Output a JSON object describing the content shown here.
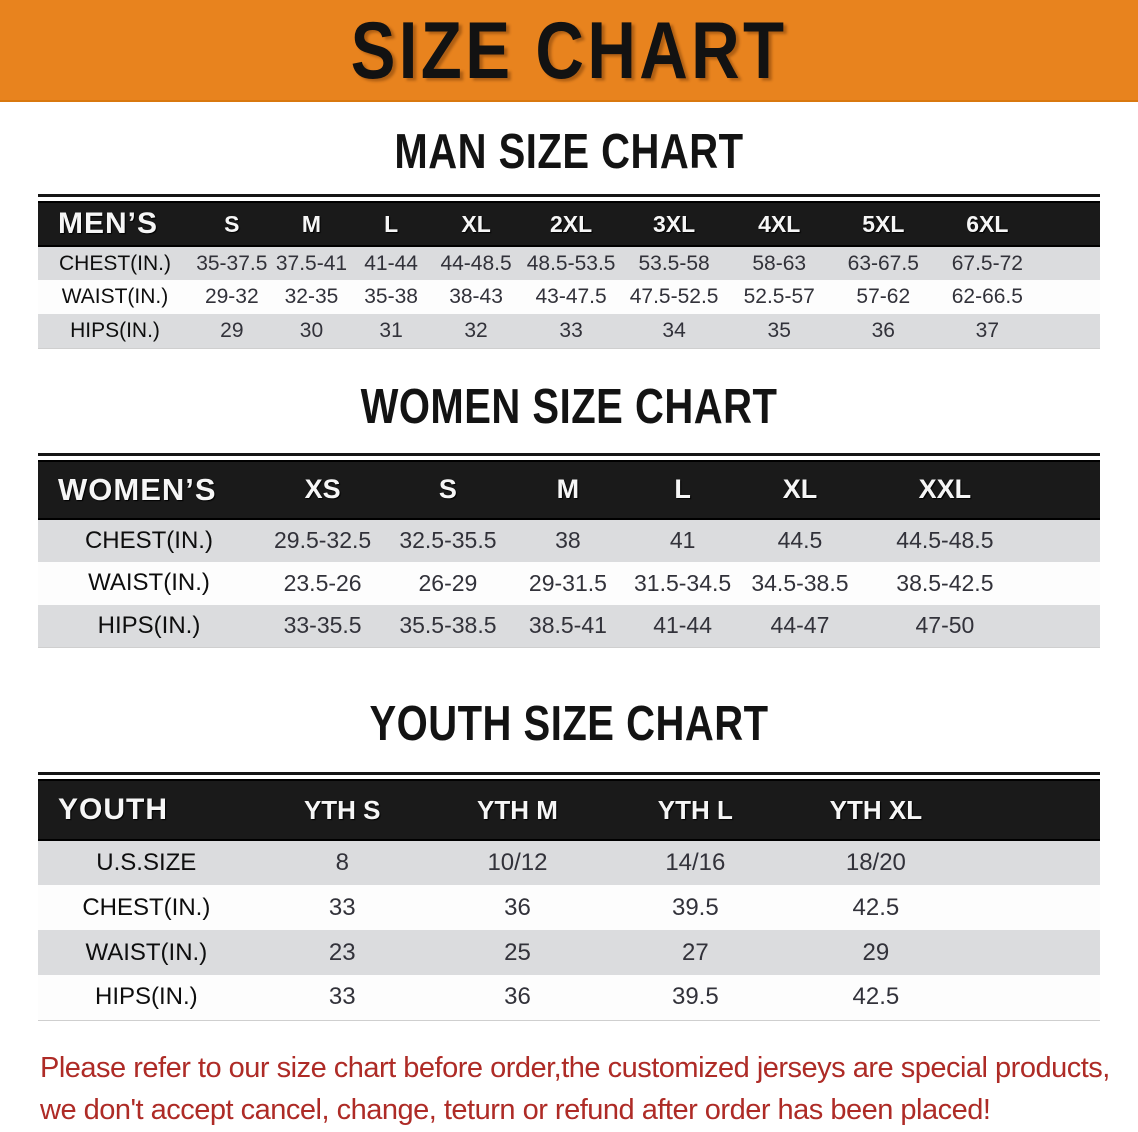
{
  "banner": {
    "title": "SIZE CHART",
    "bg": "#E8831E"
  },
  "colors": {
    "banner_bg": "#E8831E",
    "table_header_bg": "#1A1A1A",
    "row_alt_bg": "#DBDCDE",
    "footer_red": "#AE2B26"
  },
  "sections": [
    {
      "heading": "MAN SIZE CHART",
      "table": {
        "header_label": "MEN’S",
        "columns": [
          "S",
          "M",
          "L",
          "XL",
          "2XL",
          "3XL",
          "4XL",
          "5XL",
          "6XL"
        ],
        "rows": [
          {
            "label": "CHEST(IN.)",
            "values": [
              "35-37.5",
              "37.5-41",
              "41-44",
              "44-48.5",
              "48.5-53.5",
              "53.5-58",
              "58-63",
              "63-67.5",
              "67.5-72"
            ]
          },
          {
            "label": "WAIST(IN.)",
            "values": [
              "29-32",
              "32-35",
              "35-38",
              "38-43",
              "43-47.5",
              "47.5-52.5",
              "52.5-57",
              "57-62",
              "62-66.5"
            ]
          },
          {
            "label": "HIPS(IN.)",
            "values": [
              "29",
              "30",
              "31",
              "32",
              "33",
              "34",
              "35",
              "36",
              "37"
            ]
          }
        ]
      }
    },
    {
      "heading": "WOMEN SIZE CHART",
      "table": {
        "header_label": "WOMEN’S",
        "columns": [
          "XS",
          "S",
          "M",
          "L",
          "XL",
          "XXL"
        ],
        "rows": [
          {
            "label": "CHEST(IN.)",
            "values": [
              "29.5-32.5",
              "32.5-35.5",
              "38",
              "41",
              "44.5",
              "44.5-48.5"
            ]
          },
          {
            "label": "WAIST(IN.)",
            "values": [
              "23.5-26",
              "26-29",
              "29-31.5",
              "31.5-34.5",
              "34.5-38.5",
              "38.5-42.5"
            ]
          },
          {
            "label": "HIPS(IN.)",
            "values": [
              "33-35.5",
              "35.5-38.5",
              "38.5-41",
              "41-44",
              "44-47",
              "47-50"
            ]
          }
        ]
      }
    },
    {
      "heading": "YOUTH SIZE CHART",
      "table": {
        "header_label": "YOUTH",
        "columns": [
          "YTH S",
          "YTH M",
          "YTH L",
          "YTH XL"
        ],
        "rows": [
          {
            "label": "U.S.SIZE",
            "values": [
              "8",
              "10/12",
              "14/16",
              "18/20"
            ]
          },
          {
            "label": "CHEST(IN.)",
            "values": [
              "33",
              "36",
              "39.5",
              "42.5"
            ]
          },
          {
            "label": "WAIST(IN.)",
            "values": [
              "23",
              "25",
              "27",
              "29"
            ]
          },
          {
            "label": "HIPS(IN.)",
            "values": [
              "33",
              "36",
              "39.5",
              "42.5"
            ]
          }
        ]
      }
    }
  ],
  "footer": {
    "line1": "Please refer to our size chart before order,the customized jerseys are special products,",
    "line2": "we don't accept cancel, change, teturn or refund after order has been placed!"
  }
}
